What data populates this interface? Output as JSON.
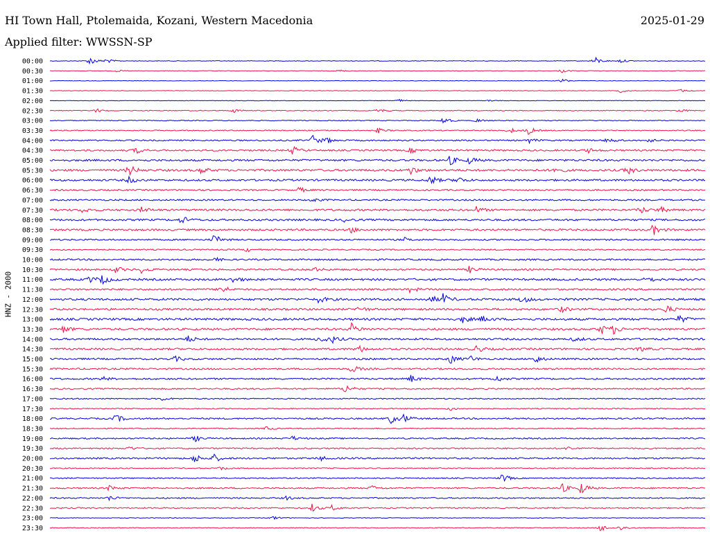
{
  "header": {
    "station": "HI Town Hall, Ptolemaida, Kozani, Western Macedonia",
    "date": "2025-01-29",
    "filter": "Applied filter: WWSSN-SP"
  },
  "chart_data": {
    "type": "line",
    "title": "HI Town Hall, Ptolemaida, Kozani, Western Macedonia",
    "ylabel": "HNZ - 2000",
    "xlabel": "",
    "grid": false,
    "legend": "none",
    "colors": [
      "#0000dd",
      "#ee1144"
    ],
    "rows": [
      {
        "label": "00:00",
        "color": "#0000dd",
        "amp": 1.0,
        "events": [
          {
            "x": 0.06,
            "a": 7
          },
          {
            "x": 0.085,
            "a": 4
          },
          {
            "x": 0.83,
            "a": 7
          },
          {
            "x": 0.87,
            "a": 3
          }
        ]
      },
      {
        "label": "00:30",
        "color": "#ee1144",
        "amp": 0.8,
        "events": [
          {
            "x": 0.1,
            "a": 2
          },
          {
            "x": 0.44,
            "a": 2
          },
          {
            "x": 0.78,
            "a": 3
          }
        ]
      },
      {
        "label": "01:00",
        "color": "#0000dd",
        "amp": 0.8,
        "events": [
          {
            "x": 0.78,
            "a": 4
          }
        ]
      },
      {
        "label": "01:30",
        "color": "#ee1144",
        "amp": 0.8,
        "events": [
          {
            "x": 0.87,
            "a": 3
          },
          {
            "x": 0.96,
            "a": 3
          }
        ]
      },
      {
        "label": "02:00",
        "color": "#0000dd",
        "amp": 0.8,
        "events": [
          {
            "x": 0.53,
            "a": 3
          },
          {
            "x": 0.67,
            "a": 2
          }
        ]
      },
      {
        "label": "02:30",
        "color": "#ee1144",
        "amp": 1.2,
        "events": [
          {
            "x": 0.07,
            "a": 3
          },
          {
            "x": 0.28,
            "a": 3
          },
          {
            "x": 0.5,
            "a": 4
          },
          {
            "x": 0.96,
            "a": 3
          }
        ]
      },
      {
        "label": "03:00",
        "color": "#0000dd",
        "amp": 1.3,
        "events": [
          {
            "x": 0.6,
            "a": 6
          },
          {
            "x": 0.65,
            "a": 3
          }
        ]
      },
      {
        "label": "03:30",
        "color": "#ee1144",
        "amp": 1.6,
        "events": [
          {
            "x": 0.5,
            "a": 4
          },
          {
            "x": 0.7,
            "a": 5
          },
          {
            "x": 0.73,
            "a": 6
          }
        ]
      },
      {
        "label": "04:00",
        "color": "#0000dd",
        "amp": 2.2,
        "events": [
          {
            "x": 0.4,
            "a": 8
          },
          {
            "x": 0.42,
            "a": 5
          },
          {
            "x": 0.73,
            "a": 4
          },
          {
            "x": 0.85,
            "a": 4
          },
          {
            "x": 0.91,
            "a": 4
          }
        ]
      },
      {
        "label": "04:30",
        "color": "#ee1144",
        "amp": 2.6,
        "events": [
          {
            "x": 0.13,
            "a": 5
          },
          {
            "x": 0.37,
            "a": 6
          },
          {
            "x": 0.55,
            "a": 4
          },
          {
            "x": 0.82,
            "a": 4
          }
        ]
      },
      {
        "label": "05:00",
        "color": "#0000dd",
        "amp": 3.0,
        "events": [
          {
            "x": 0.61,
            "a": 7
          },
          {
            "x": 0.64,
            "a": 5
          }
        ]
      },
      {
        "label": "05:30",
        "color": "#ee1144",
        "amp": 3.2,
        "events": [
          {
            "x": 0.12,
            "a": 9
          },
          {
            "x": 0.23,
            "a": 5
          },
          {
            "x": 0.55,
            "a": 6
          },
          {
            "x": 0.77,
            "a": 5
          },
          {
            "x": 0.88,
            "a": 7
          }
        ]
      },
      {
        "label": "06:00",
        "color": "#0000dd",
        "amp": 3.0,
        "events": [
          {
            "x": 0.12,
            "a": 5
          },
          {
            "x": 0.58,
            "a": 7
          },
          {
            "x": 0.62,
            "a": 6
          }
        ]
      },
      {
        "label": "06:30",
        "color": "#ee1144",
        "amp": 2.4,
        "events": [
          {
            "x": 0.38,
            "a": 4
          }
        ]
      },
      {
        "label": "07:00",
        "color": "#0000dd",
        "amp": 2.4,
        "events": [
          {
            "x": 0.4,
            "a": 3
          }
        ]
      },
      {
        "label": "07:30",
        "color": "#ee1144",
        "amp": 3.0,
        "events": [
          {
            "x": 0.05,
            "a": 4
          },
          {
            "x": 0.14,
            "a": 4
          },
          {
            "x": 0.65,
            "a": 5
          },
          {
            "x": 0.9,
            "a": 6
          },
          {
            "x": 0.93,
            "a": 5
          }
        ]
      },
      {
        "label": "08:00",
        "color": "#0000dd",
        "amp": 3.0,
        "events": [
          {
            "x": 0.2,
            "a": 6
          },
          {
            "x": 0.45,
            "a": 3
          }
        ]
      },
      {
        "label": "08:30",
        "color": "#ee1144",
        "amp": 3.0,
        "events": [
          {
            "x": 0.46,
            "a": 4
          },
          {
            "x": 0.92,
            "a": 8
          }
        ]
      },
      {
        "label": "09:00",
        "color": "#0000dd",
        "amp": 2.4,
        "events": [
          {
            "x": 0.25,
            "a": 8
          },
          {
            "x": 0.54,
            "a": 3
          }
        ]
      },
      {
        "label": "09:30",
        "color": "#ee1144",
        "amp": 2.0,
        "events": [
          {
            "x": 0.3,
            "a": 3
          }
        ]
      },
      {
        "label": "10:00",
        "color": "#0000dd",
        "amp": 2.6,
        "events": [
          {
            "x": 0.25,
            "a": 3
          }
        ]
      },
      {
        "label": "10:30",
        "color": "#ee1144",
        "amp": 2.6,
        "events": [
          {
            "x": 0.1,
            "a": 5
          },
          {
            "x": 0.14,
            "a": 5
          },
          {
            "x": 0.4,
            "a": 4
          },
          {
            "x": 0.64,
            "a": 5
          }
        ]
      },
      {
        "label": "11:00",
        "color": "#0000dd",
        "amp": 3.2,
        "events": [
          {
            "x": 0.06,
            "a": 5
          },
          {
            "x": 0.08,
            "a": 7
          },
          {
            "x": 0.28,
            "a": 5
          },
          {
            "x": 0.91,
            "a": 5
          }
        ]
      },
      {
        "label": "11:30",
        "color": "#ee1144",
        "amp": 2.8,
        "events": [
          {
            "x": 0.26,
            "a": 8
          },
          {
            "x": 0.55,
            "a": 5
          }
        ]
      },
      {
        "label": "12:00",
        "color": "#0000dd",
        "amp": 3.4,
        "events": [
          {
            "x": 0.41,
            "a": 5
          },
          {
            "x": 0.58,
            "a": 6
          },
          {
            "x": 0.6,
            "a": 7
          },
          {
            "x": 0.72,
            "a": 6
          }
        ]
      },
      {
        "label": "12:30",
        "color": "#ee1144",
        "amp": 3.2,
        "events": [
          {
            "x": 0.47,
            "a": 4
          },
          {
            "x": 0.78,
            "a": 4
          },
          {
            "x": 0.94,
            "a": 6
          }
        ]
      },
      {
        "label": "13:00",
        "color": "#0000dd",
        "amp": 3.4,
        "events": [
          {
            "x": 0.63,
            "a": 5
          },
          {
            "x": 0.66,
            "a": 5
          },
          {
            "x": 0.96,
            "a": 6
          }
        ]
      },
      {
        "label": "13:30",
        "color": "#ee1144",
        "amp": 3.2,
        "events": [
          {
            "x": 0.02,
            "a": 5
          },
          {
            "x": 0.46,
            "a": 8
          },
          {
            "x": 0.84,
            "a": 8
          },
          {
            "x": 0.86,
            "a": 6
          }
        ]
      },
      {
        "label": "14:00",
        "color": "#0000dd",
        "amp": 3.0,
        "events": [
          {
            "x": 0.21,
            "a": 5
          },
          {
            "x": 0.41,
            "a": 6
          },
          {
            "x": 0.43,
            "a": 5
          },
          {
            "x": 0.8,
            "a": 4
          }
        ]
      },
      {
        "label": "14:30",
        "color": "#ee1144",
        "amp": 3.0,
        "events": [
          {
            "x": 0.47,
            "a": 6
          },
          {
            "x": 0.65,
            "a": 6
          },
          {
            "x": 0.9,
            "a": 4
          }
        ]
      },
      {
        "label": "15:00",
        "color": "#0000dd",
        "amp": 2.8,
        "events": [
          {
            "x": 0.19,
            "a": 4
          },
          {
            "x": 0.61,
            "a": 7
          },
          {
            "x": 0.64,
            "a": 5
          },
          {
            "x": 0.74,
            "a": 6
          }
        ]
      },
      {
        "label": "15:30",
        "color": "#ee1144",
        "amp": 2.6,
        "events": [
          {
            "x": 0.46,
            "a": 6
          }
        ]
      },
      {
        "label": "16:00",
        "color": "#0000dd",
        "amp": 2.6,
        "events": [
          {
            "x": 0.08,
            "a": 3
          },
          {
            "x": 0.55,
            "a": 6
          },
          {
            "x": 0.68,
            "a": 5
          }
        ]
      },
      {
        "label": "16:30",
        "color": "#ee1144",
        "amp": 2.2,
        "events": [
          {
            "x": 0.45,
            "a": 7
          }
        ]
      },
      {
        "label": "17:00",
        "color": "#0000dd",
        "amp": 1.8,
        "events": [
          {
            "x": 0.17,
            "a": 3
          }
        ]
      },
      {
        "label": "17:30",
        "color": "#ee1144",
        "amp": 1.6,
        "events": [
          {
            "x": 0.61,
            "a": 3
          }
        ]
      },
      {
        "label": "18:00",
        "color": "#0000dd",
        "amp": 2.4,
        "events": [
          {
            "x": 0.1,
            "a": 7
          },
          {
            "x": 0.52,
            "a": 8
          },
          {
            "x": 0.54,
            "a": 6
          }
        ]
      },
      {
        "label": "18:30",
        "color": "#ee1144",
        "amp": 1.6,
        "events": [
          {
            "x": 0.33,
            "a": 3
          }
        ]
      },
      {
        "label": "19:00",
        "color": "#0000dd",
        "amp": 2.2,
        "events": [
          {
            "x": 0.22,
            "a": 5
          },
          {
            "x": 0.37,
            "a": 3
          }
        ]
      },
      {
        "label": "19:30",
        "color": "#ee1144",
        "amp": 2.0,
        "events": [
          {
            "x": 0.12,
            "a": 3
          },
          {
            "x": 0.79,
            "a": 3
          }
        ]
      },
      {
        "label": "20:00",
        "color": "#0000dd",
        "amp": 2.6,
        "events": [
          {
            "x": 0.22,
            "a": 7
          },
          {
            "x": 0.25,
            "a": 6
          },
          {
            "x": 0.41,
            "a": 4
          }
        ]
      },
      {
        "label": "20:30",
        "color": "#ee1144",
        "amp": 1.6,
        "events": [
          {
            "x": 0.26,
            "a": 3
          }
        ]
      },
      {
        "label": "21:00",
        "color": "#0000dd",
        "amp": 1.8,
        "events": [
          {
            "x": 0.69,
            "a": 7
          }
        ]
      },
      {
        "label": "21:30",
        "color": "#ee1144",
        "amp": 2.2,
        "events": [
          {
            "x": 0.09,
            "a": 4
          },
          {
            "x": 0.49,
            "a": 4
          },
          {
            "x": 0.78,
            "a": 8
          },
          {
            "x": 0.81,
            "a": 9
          }
        ]
      },
      {
        "label": "22:00",
        "color": "#0000dd",
        "amp": 2.0,
        "events": [
          {
            "x": 0.09,
            "a": 4
          },
          {
            "x": 0.36,
            "a": 3
          }
        ]
      },
      {
        "label": "22:30",
        "color": "#ee1144",
        "amp": 1.8,
        "events": [
          {
            "x": 0.4,
            "a": 6
          },
          {
            "x": 0.43,
            "a": 4
          }
        ]
      },
      {
        "label": "23:00",
        "color": "#0000dd",
        "amp": 1.0,
        "events": [
          {
            "x": 0.34,
            "a": 3
          }
        ]
      },
      {
        "label": "23:30",
        "color": "#ee1144",
        "amp": 1.2,
        "events": [
          {
            "x": 0.84,
            "a": 6
          },
          {
            "x": 0.87,
            "a": 4
          }
        ]
      }
    ]
  }
}
